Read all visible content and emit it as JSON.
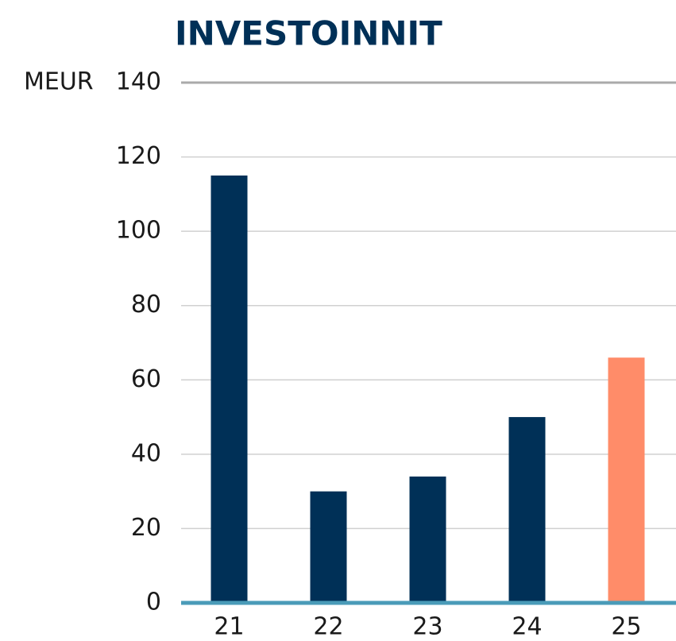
{
  "chart_data": {
    "type": "bar",
    "title": "INVESTOINNIT",
    "y_label": "MEUR",
    "categories": [
      "21",
      "22",
      "23",
      "24",
      "25"
    ],
    "values": [
      115,
      30,
      34,
      50,
      66
    ],
    "colors": [
      "#003057",
      "#003057",
      "#003057",
      "#003057",
      "#ff8c69"
    ],
    "ylim": [
      0,
      140
    ],
    "yticks": [
      0,
      20,
      40,
      60,
      80,
      100,
      120,
      140
    ],
    "grid": true
  }
}
